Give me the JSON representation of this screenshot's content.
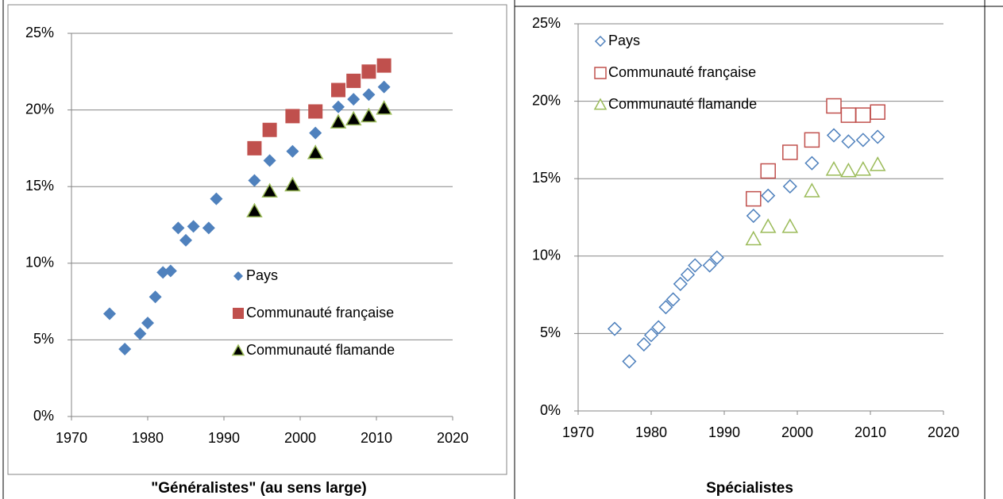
{
  "chart_data": [
    {
      "type": "scatter",
      "title": "\"Généralistes\" (au sens large)",
      "legend": "center right",
      "grid": true,
      "xlim": [
        1970,
        2020
      ],
      "xticks": [
        1970,
        1980,
        1990,
        2000,
        2010,
        2020
      ],
      "ylim": [
        0,
        25
      ],
      "yticks": [
        {
          "value": 0,
          "label": "0%"
        },
        {
          "value": 5,
          "label": "5%"
        },
        {
          "value": 10,
          "label": "10%"
        },
        {
          "value": 15,
          "label": "15%"
        },
        {
          "value": 20,
          "label": "20%"
        },
        {
          "value": 25,
          "label": "25%"
        }
      ],
      "series": [
        {
          "name": "Pays",
          "color": "#4f81bd",
          "marker": "diamond",
          "filled": true,
          "x": [
            1975,
            1977,
            1979,
            1980,
            1981,
            1982,
            1983,
            1984,
            1985,
            1986,
            1988,
            1989,
            1994,
            1996,
            1999,
            2002,
            2005,
            2007,
            2009,
            2011
          ],
          "values": [
            6.7,
            4.4,
            5.4,
            6.1,
            7.8,
            9.4,
            9.5,
            12.3,
            11.5,
            12.4,
            12.3,
            14.2,
            15.4,
            16.7,
            17.3,
            18.5,
            20.2,
            20.7,
            21.0,
            21.5
          ]
        },
        {
          "name": "Communauté française",
          "color": "#c0504d",
          "marker": "square",
          "filled": true,
          "x": [
            1994,
            1996,
            1999,
            2002,
            2005,
            2007,
            2009,
            2011
          ],
          "values": [
            17.5,
            18.7,
            19.6,
            19.9,
            21.3,
            21.9,
            22.5,
            22.9
          ]
        },
        {
          "name": "Communauté flamande",
          "color": "#000000",
          "edge_color": "#9bbb59",
          "marker": "triangle",
          "filled": true,
          "x": [
            1994,
            1996,
            1999,
            2002,
            2005,
            2007,
            2009,
            2011
          ],
          "values": [
            13.4,
            14.7,
            15.1,
            17.2,
            19.2,
            19.4,
            19.6,
            20.1
          ]
        }
      ]
    },
    {
      "type": "scatter",
      "title": "Spécialistes",
      "legend": "upper left",
      "grid": true,
      "xlim": [
        1970,
        2020
      ],
      "xticks": [
        1970,
        1980,
        1990,
        2000,
        2010,
        2020
      ],
      "ylim": [
        0,
        25
      ],
      "yticks": [
        {
          "value": 0,
          "label": "0%"
        },
        {
          "value": 5,
          "label": "5%"
        },
        {
          "value": 10,
          "label": "10%"
        },
        {
          "value": 15,
          "label": "15%"
        },
        {
          "value": 20,
          "label": "20%"
        },
        {
          "value": 25,
          "label": "25%"
        }
      ],
      "series": [
        {
          "name": "Pays",
          "color": "#4f81bd",
          "marker": "diamond",
          "filled": false,
          "x": [
            1975,
            1977,
            1979,
            1980,
            1981,
            1982,
            1983,
            1984,
            1985,
            1986,
            1988,
            1989,
            1994,
            1996,
            1999,
            2002,
            2005,
            2007,
            2009,
            2011
          ],
          "values": [
            5.3,
            3.2,
            4.3,
            4.9,
            5.4,
            6.7,
            7.2,
            8.2,
            8.8,
            9.4,
            9.4,
            9.9,
            12.6,
            13.9,
            14.5,
            16.0,
            17.8,
            17.4,
            17.5,
            17.7
          ]
        },
        {
          "name": "Communauté française",
          "color": "#c0504d",
          "marker": "square",
          "filled": false,
          "x": [
            1994,
            1996,
            1999,
            2002,
            2005,
            2007,
            2009,
            2011
          ],
          "values": [
            13.7,
            15.5,
            16.7,
            17.5,
            19.7,
            19.1,
            19.1,
            19.3
          ]
        },
        {
          "name": "Communauté flamande",
          "color": "#9bbb59",
          "marker": "triangle",
          "filled": false,
          "x": [
            1994,
            1996,
            1999,
            2002,
            2005,
            2007,
            2009,
            2011
          ],
          "values": [
            11.1,
            11.9,
            11.9,
            14.2,
            15.6,
            15.5,
            15.6,
            15.9
          ]
        }
      ]
    }
  ]
}
